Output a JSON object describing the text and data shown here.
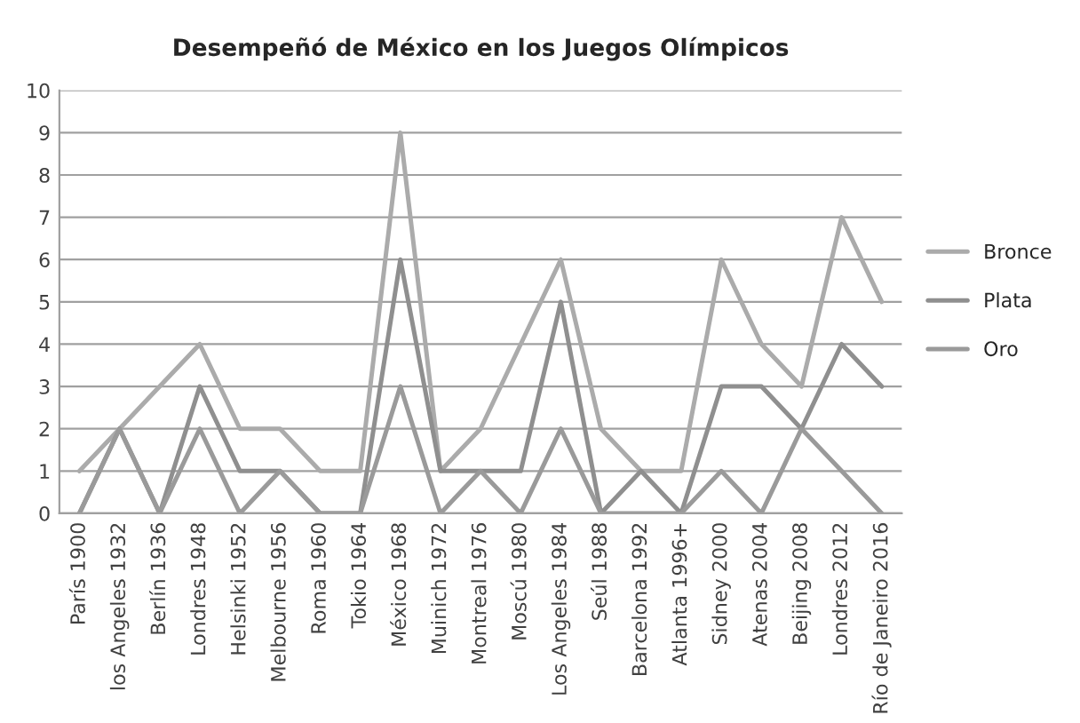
{
  "chart_data": {
    "type": "line",
    "title": "Desempeñó de México en los Juegos Olímpicos",
    "categories": [
      "París 1900",
      "los Angeles 1932",
      "Berlín 1936",
      "Londres 1948",
      "Helsinki 1952",
      "Melbourne 1956",
      "Roma 1960",
      "Tokio 1964",
      "México 1968",
      "Muinich 1972",
      "Montreal 1976",
      "Moscú 1980",
      "Los Angeles 1984",
      "Seúl 1988",
      "Barcelona 1992",
      "Atlanta 1996+",
      "Sidney 2000",
      "Atenas 2004",
      "Beijing 2008",
      "Londres 2012",
      "Río de Janeiro 2016"
    ],
    "series": [
      {
        "name": "Bronce",
        "color": "#ababab",
        "values": [
          1,
          2,
          3,
          4,
          2,
          2,
          1,
          1,
          9,
          1,
          2,
          4,
          6,
          2,
          1,
          1,
          6,
          4,
          3,
          7,
          5
        ]
      },
      {
        "name": "Plata",
        "color": "#8f8f8f",
        "values": [
          0,
          2,
          0,
          3,
          1,
          1,
          0,
          0,
          6,
          1,
          1,
          1,
          5,
          0,
          1,
          0,
          3,
          3,
          2,
          4,
          3
        ]
      },
      {
        "name": "Oro",
        "color": "#9a9a9a",
        "values": [
          0,
          2,
          0,
          2,
          0,
          1,
          0,
          0,
          3,
          0,
          1,
          0,
          2,
          0,
          0,
          0,
          1,
          0,
          2,
          1,
          0
        ]
      }
    ],
    "ylim": [
      0,
      10
    ],
    "yticks": [
      0,
      1,
      2,
      3,
      4,
      5,
      6,
      7,
      8,
      9,
      10
    ],
    "grid": "y",
    "legend": "right",
    "marker": "none",
    "line_style": "solid"
  }
}
